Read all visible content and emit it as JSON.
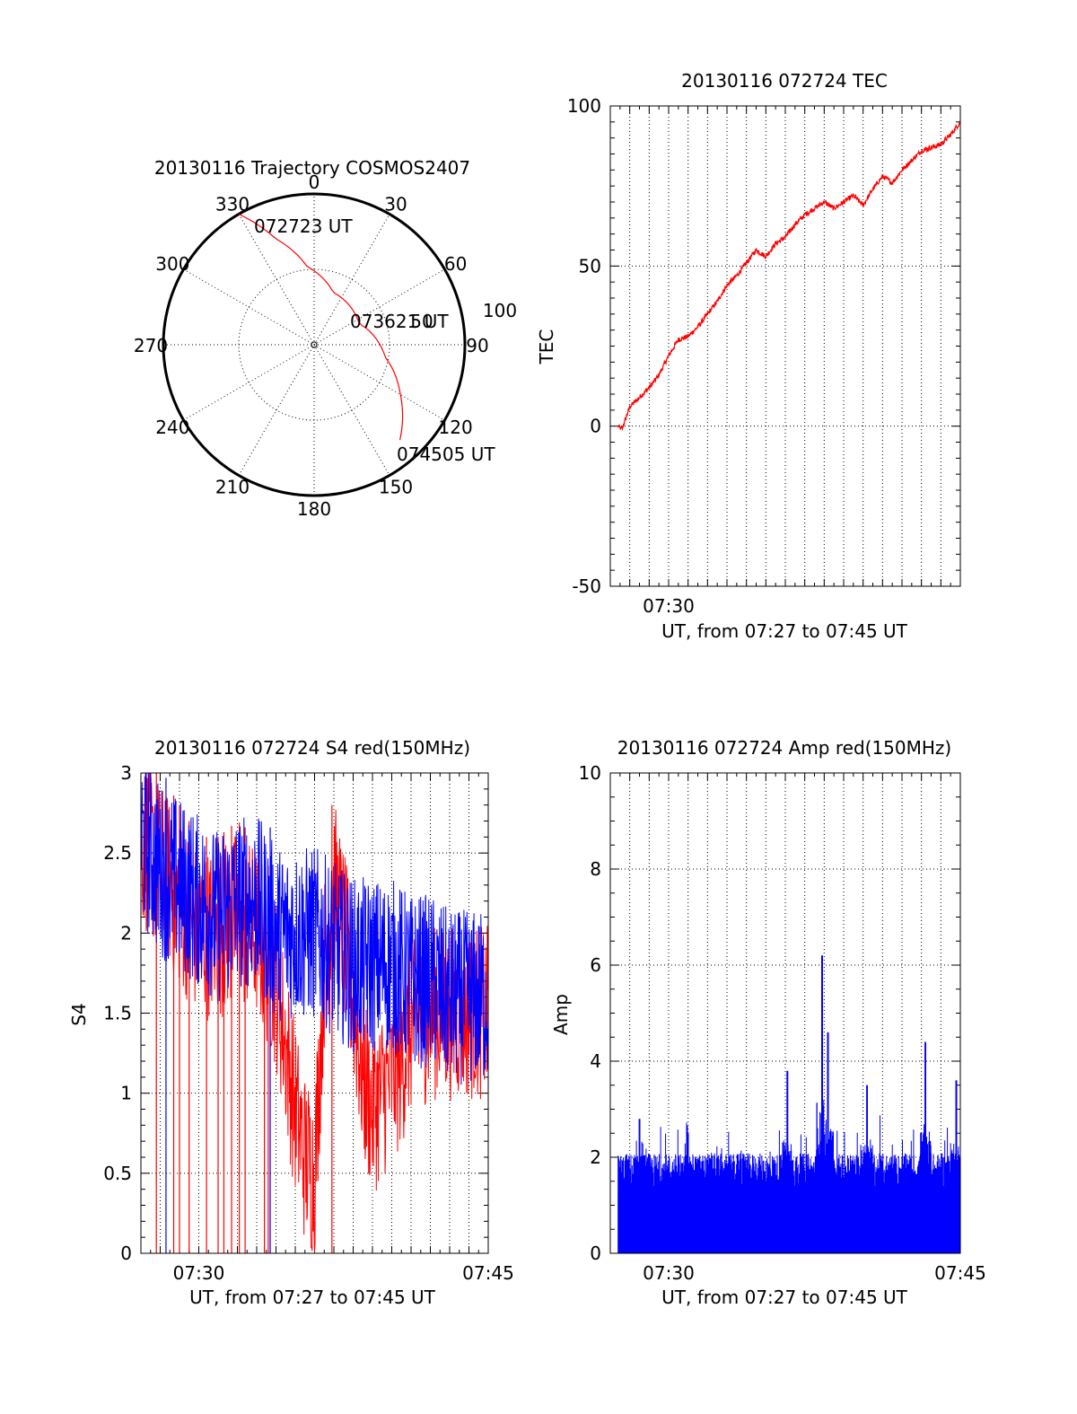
{
  "chart_data": [
    {
      "id": "trajectory",
      "type": "polar",
      "title": "20130116 Trajectory COSMOS2407",
      "angle_labels": [
        "0",
        "30",
        "60",
        "90",
        "120",
        "150",
        "180",
        "210",
        "240",
        "270",
        "300",
        "330"
      ],
      "radius_labels": [
        "50",
        "100"
      ],
      "rlim": [
        0,
        100
      ],
      "grid": true,
      "series": [
        {
          "color": "#ff0000",
          "points": [
            {
              "az": 330,
              "r": 100
            },
            {
              "az": 340,
              "r": 75
            },
            {
              "az": 355,
              "r": 52
            },
            {
              "az": 20,
              "r": 37
            },
            {
              "az": 65,
              "r": 33
            },
            {
              "az": 100,
              "r": 48
            },
            {
              "az": 120,
              "r": 66
            },
            {
              "az": 138,
              "r": 85
            }
          ]
        }
      ],
      "annotations": [
        "072723 UT",
        "073621 UT",
        "074505 UT"
      ]
    },
    {
      "id": "tec",
      "type": "line",
      "title": "20130116 072724 TEC",
      "ylabel": "TEC",
      "xlabel": "UT, from 07:27 to 07:45 UT",
      "xlim": [
        0,
        18
      ],
      "ylim": [
        -50,
        100
      ],
      "yticks": [
        -50,
        0,
        50,
        100
      ],
      "xticks": [
        {
          "value": 3,
          "label": "07:30"
        }
      ],
      "xgrid": [
        1,
        2,
        3,
        4,
        5,
        6,
        7,
        8,
        9,
        10,
        11,
        12,
        13,
        14,
        15,
        16,
        17
      ],
      "ygrid": [
        0,
        50
      ],
      "series": [
        {
          "color": "#ff0000",
          "x": [
            0.4,
            0.6,
            1.0,
            1.5,
            2.0,
            2.5,
            3.0,
            3.5,
            4.0,
            4.5,
            5.0,
            5.5,
            6.0,
            6.5,
            7.0,
            7.5,
            8.0,
            8.5,
            9.0,
            9.5,
            10.0,
            10.5,
            11.0,
            11.5,
            12.0,
            12.5,
            13.0,
            13.5,
            14.0,
            14.5,
            15.0,
            15.5,
            16.0,
            16.5,
            17.0,
            17.5,
            18.0
          ],
          "y": [
            0,
            -1,
            6,
            9,
            12,
            16,
            22,
            27,
            28,
            31,
            35,
            39,
            44,
            47,
            51,
            55,
            53,
            57,
            59,
            63,
            66,
            68,
            70,
            68,
            70,
            72,
            69,
            74,
            78,
            76,
            80,
            83,
            86,
            87,
            88,
            91,
            95
          ]
        }
      ]
    },
    {
      "id": "s4",
      "type": "line",
      "title": "20130116 072724 S4 red(150MHz)",
      "ylabel": "S4",
      "xlabel": "UT, from 07:27 to 07:45 UT",
      "xlim": [
        0,
        18
      ],
      "ylim": [
        0,
        3
      ],
      "yticks": [
        0,
        0.5,
        1,
        1.5,
        2,
        2.5,
        3
      ],
      "ytick_labels": [
        "0",
        "0.5",
        "1",
        "1.5",
        "2",
        "2.5",
        "3"
      ],
      "xticks": [
        {
          "value": 3,
          "label": "07:30"
        },
        {
          "value": 18,
          "label": "07:45"
        }
      ],
      "xgrid": [
        1,
        2,
        3,
        4,
        5,
        6,
        7,
        8,
        9,
        10,
        11,
        12,
        13,
        14,
        15,
        16,
        17
      ],
      "ygrid": [
        0.5,
        1,
        1.5,
        2,
        2.5
      ],
      "series": [
        {
          "color": "#ff0000",
          "envelope_x": [
            0,
            1,
            2,
            3,
            4,
            5,
            6,
            7,
            7.5,
            8,
            8.5,
            9,
            9.5,
            10,
            10.5,
            11,
            11.5,
            12,
            12.5,
            13,
            13.5,
            14,
            15,
            16,
            17,
            18
          ],
          "envelope_center": [
            2.6,
            2.4,
            2.2,
            2.0,
            2.0,
            2.1,
            2.0,
            1.7,
            1.3,
            0.9,
            0.6,
            0.5,
            1.8,
            2.3,
            2.0,
            1.6,
            1.1,
            0.9,
            1.0,
            1.1,
            1.2,
            1.4,
            1.5,
            1.5,
            1.5,
            1.5
          ],
          "dropouts_x": [
            0.8,
            1.7,
            2.0,
            2.5,
            3.4,
            4.0,
            4.3,
            4.7,
            5.1,
            5.4,
            6.4,
            6.6,
            9.9
          ]
        },
        {
          "color": "#0000ff",
          "envelope_x": [
            0,
            1,
            2,
            3,
            4,
            5,
            6,
            7,
            8,
            9,
            10,
            11,
            12,
            13,
            14,
            15,
            16,
            17,
            18
          ],
          "envelope_center": [
            2.6,
            2.4,
            2.3,
            2.2,
            2.1,
            2.2,
            2.2,
            2.0,
            2.0,
            2.0,
            1.9,
            1.8,
            1.8,
            1.8,
            1.7,
            1.7,
            1.6,
            1.6,
            1.6
          ],
          "dropouts_x": [
            1.3,
            6.7
          ]
        }
      ]
    },
    {
      "id": "amp",
      "type": "bar",
      "title": "20130116 072724 Amp red(150MHz)",
      "ylabel": "Amp",
      "xlabel": "UT, from 07:27 to 07:45 UT",
      "xlim": [
        0,
        18
      ],
      "ylim": [
        0,
        10
      ],
      "yticks": [
        0,
        2,
        4,
        6,
        8,
        10
      ],
      "xticks": [
        {
          "value": 3,
          "label": "07:30"
        },
        {
          "value": 18,
          "label": "07:45"
        }
      ],
      "xgrid": [
        1,
        2,
        3,
        4,
        5,
        6,
        7,
        8,
        9,
        10,
        11,
        12,
        13,
        14,
        15,
        16,
        17
      ],
      "ygrid": [
        2,
        4,
        6,
        8
      ],
      "series": [
        {
          "color": "#0000ff",
          "x_start": 0.4,
          "base_level": 1.6,
          "peaks": [
            {
              "x": 1.5,
              "y": 2.8
            },
            {
              "x": 4.0,
              "y": 2.5
            },
            {
              "x": 9.1,
              "y": 3.8
            },
            {
              "x": 10.9,
              "y": 6.2
            },
            {
              "x": 11.2,
              "y": 4.6
            },
            {
              "x": 13.2,
              "y": 3.5
            },
            {
              "x": 16.2,
              "y": 4.4
            },
            {
              "x": 17.8,
              "y": 3.6
            }
          ]
        }
      ]
    }
  ]
}
